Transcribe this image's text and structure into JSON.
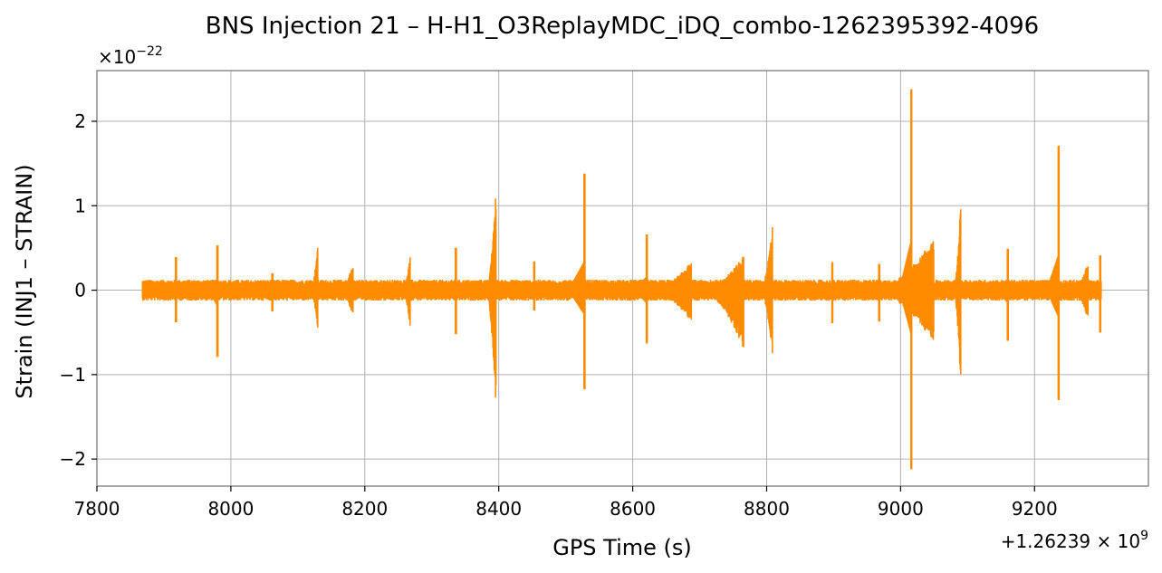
{
  "chart_data": {
    "type": "line",
    "title": "BNS Injection 21 – H-H1_O3ReplayMDC_iDQ_combo-1262395392-4096",
    "xlabel": "GPS Time (s)",
    "ylabel": "Strain (INJ1 – STRAIN)",
    "x_offset_label": "+1.26239 × 10",
    "x_offset_exponent": "9",
    "y_multiplier_label": "×10",
    "y_multiplier_exponent": "−22",
    "xlim": [
      7800,
      9370
    ],
    "ylim": [
      -2.32,
      2.6
    ],
    "x_ticks": [
      7800,
      8000,
      8200,
      8400,
      8600,
      8800,
      9000,
      9200
    ],
    "x_tick_labels": [
      "7800",
      "8000",
      "8200",
      "8400",
      "8600",
      "8800",
      "9000",
      "9200"
    ],
    "y_ticks": [
      -2,
      -1,
      0,
      1,
      2
    ],
    "y_tick_labels": [
      "−2",
      "−1",
      "0",
      "1",
      "2"
    ],
    "grid": true,
    "line_color": "#ff8c00",
    "data_range": [
      7868,
      9300
    ],
    "baseline_amplitude": 0.1,
    "events": [
      {
        "x": 7918,
        "max": 0.39,
        "min": -0.38,
        "dur": 6
      },
      {
        "x": 7980,
        "max": 0.53,
        "min": -0.79,
        "dur": 4
      },
      {
        "x": 8062,
        "max": 0.2,
        "min": -0.25,
        "dur": 4
      },
      {
        "x": 8130,
        "max": 0.52,
        "min": -0.46,
        "dur": 12
      },
      {
        "x": 8183,
        "max": 0.3,
        "min": -0.3,
        "dur": 22
      },
      {
        "x": 8268,
        "max": 0.37,
        "min": -0.4,
        "dur": 14
      },
      {
        "x": 8336,
        "max": 0.5,
        "min": -0.52,
        "dur": 8
      },
      {
        "x": 8396,
        "max": 1.1,
        "min": -1.29,
        "dur": 16
      },
      {
        "x": 8453,
        "max": 0.34,
        "min": -0.24,
        "dur": 4
      },
      {
        "x": 8528,
        "max": 1.38,
        "min": -1.17,
        "dur": 8
      },
      {
        "x": 8621,
        "max": 0.66,
        "min": -0.63,
        "dur": 6
      },
      {
        "x": 8688,
        "max": 0.3,
        "min": -0.33,
        "dur": 70
      },
      {
        "x": 8766,
        "max": 0.37,
        "min": -0.63,
        "dur": 70
      },
      {
        "x": 8809,
        "max": 0.71,
        "min": -0.71,
        "dur": 20
      },
      {
        "x": 8898,
        "max": 0.33,
        "min": -0.39,
        "dur": 8
      },
      {
        "x": 8968,
        "max": 0.31,
        "min": -0.37,
        "dur": 6
      },
      {
        "x": 9016,
        "max": 2.38,
        "min": -2.12,
        "dur": 6
      },
      {
        "x": 9050,
        "max": 0.56,
        "min": -0.57,
        "dur": 100
      },
      {
        "x": 9090,
        "max": 0.99,
        "min": -1.03,
        "dur": 12
      },
      {
        "x": 9160,
        "max": 0.49,
        "min": -0.6,
        "dur": 6
      },
      {
        "x": 9236,
        "max": 1.71,
        "min": -1.3,
        "dur": 6
      },
      {
        "x": 9280,
        "max": 0.3,
        "min": -0.32,
        "dur": 25
      },
      {
        "x": 9298,
        "max": 0.41,
        "min": -0.5,
        "dur": 6
      }
    ]
  }
}
